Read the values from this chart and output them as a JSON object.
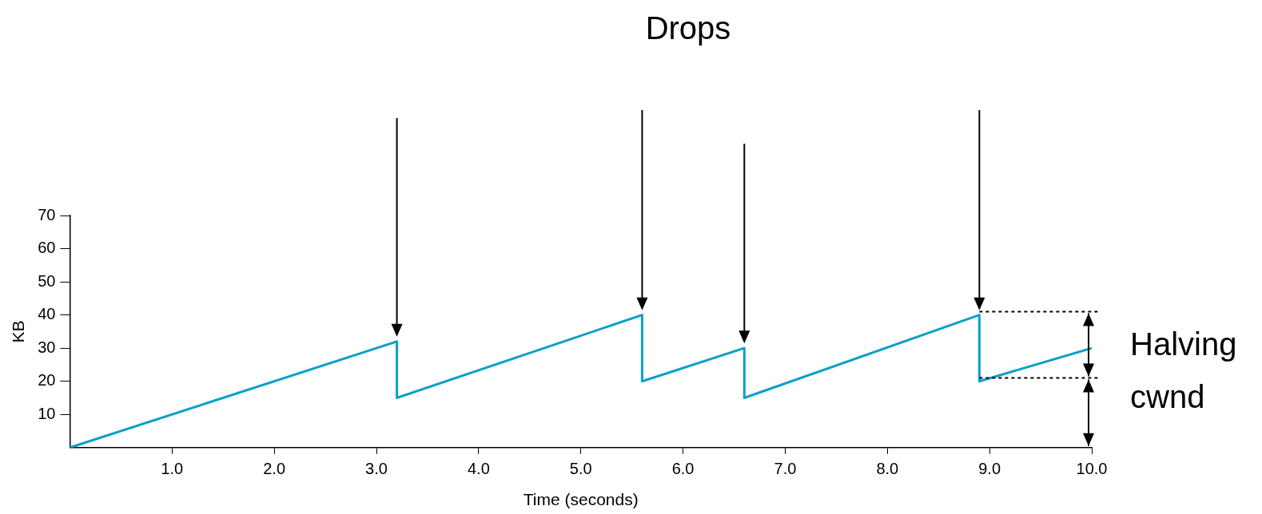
{
  "chart_data": {
    "type": "line",
    "title": "Drops",
    "xlabel": "Time (seconds)",
    "ylabel": "KB",
    "annotations": [
      "Halving cwnd"
    ],
    "x": [
      0,
      3.2,
      3.2,
      5.6,
      5.6,
      6.6,
      6.6,
      8.9,
      8.9,
      10
    ],
    "series": [
      {
        "color": "#0aa0c8",
        "values": [
          0,
          32,
          15,
          40,
          20,
          30,
          15,
          40,
          20,
          30
        ]
      }
    ],
    "xlim": [
      0,
      10
    ],
    "xticks": [
      {
        "value": 1,
        "label": "1.0"
      },
      {
        "value": 2,
        "label": "2.0"
      },
      {
        "value": 3,
        "label": "3.0"
      },
      {
        "value": 4,
        "label": "4.0"
      },
      {
        "value": 5,
        "label": "5.0"
      },
      {
        "value": 6,
        "label": "6.0"
      },
      {
        "value": 7,
        "label": "7.0"
      },
      {
        "value": 8,
        "label": "8.0"
      },
      {
        "value": 9,
        "label": "9.0"
      },
      {
        "value": 10,
        "label": "10.0"
      }
    ],
    "ylim": [
      0,
      70
    ],
    "yticks": [
      10,
      20,
      30,
      40,
      50,
      60,
      70
    ],
    "ref_lines": [
      {
        "axis": "y",
        "value": 41,
        "line_style": "dotted",
        "color": "#000000"
      },
      {
        "axis": "y",
        "value": 21,
        "line_style": "dotted",
        "color": "#000000"
      }
    ],
    "grid": false,
    "legend": false,
    "marker": "none",
    "line_style": "solid"
  }
}
